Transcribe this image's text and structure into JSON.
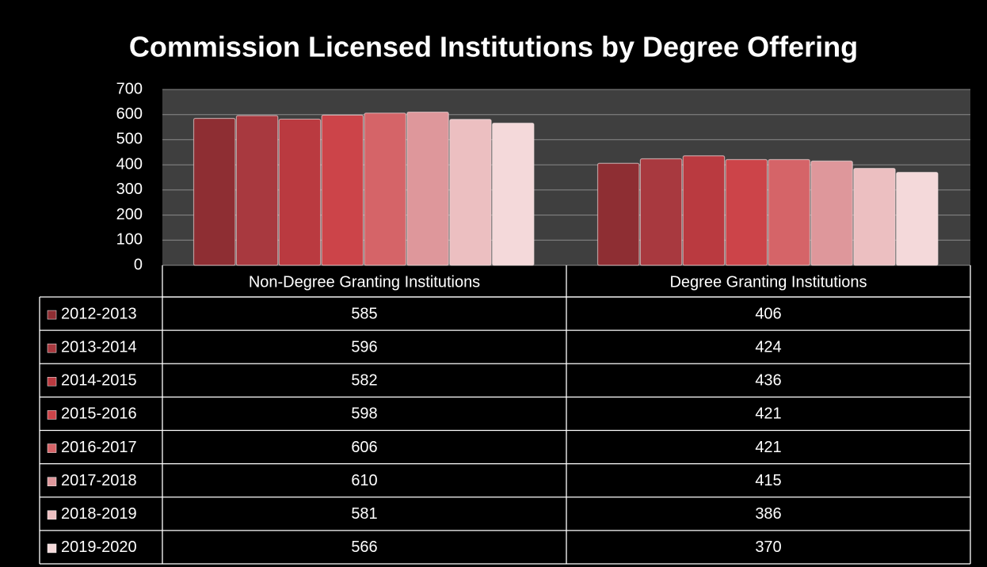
{
  "chart_data": {
    "type": "bar",
    "title": "Commission Licensed Institutions by Degree Offering",
    "categories": [
      "Non-Degree Granting Institutions",
      "Degree Granting Institutions"
    ],
    "series": [
      {
        "name": "2012-2013",
        "color": "#8e2e33",
        "values": [
          585,
          406
        ]
      },
      {
        "name": "2013-2014",
        "color": "#a8393f",
        "values": [
          596,
          424
        ]
      },
      {
        "name": "2014-2015",
        "color": "#ba3a40",
        "values": [
          582,
          436
        ]
      },
      {
        "name": "2015-2016",
        "color": "#cc4449",
        "values": [
          598,
          421
        ]
      },
      {
        "name": "2016-2017",
        "color": "#d56468",
        "values": [
          606,
          421
        ]
      },
      {
        "name": "2017-2018",
        "color": "#de979b",
        "values": [
          610,
          415
        ]
      },
      {
        "name": "2018-2019",
        "color": "#ecbfc1",
        "values": [
          581,
          386
        ]
      },
      {
        "name": "2019-2020",
        "color": "#f4d9da",
        "values": [
          566,
          370
        ]
      }
    ],
    "ylim": [
      0,
      700
    ],
    "yticks": [
      0,
      100,
      200,
      300,
      400,
      500,
      600,
      700
    ],
    "grid": true
  }
}
